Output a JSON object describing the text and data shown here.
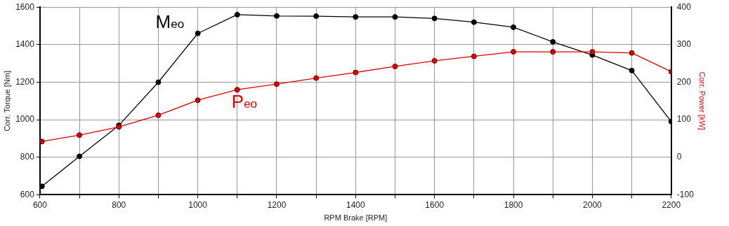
{
  "chart_data": {
    "type": "line",
    "xlabel": "RPM Brake [RPM]",
    "ylabel": "Corr. Torque [Nm]",
    "y2label": "Corr. Power [kW]",
    "x": [
      605,
      700,
      800,
      900,
      1000,
      1100,
      1200,
      1300,
      1400,
      1500,
      1600,
      1700,
      1800,
      1900,
      2000,
      2100,
      2200
    ],
    "series": [
      {
        "name": "M$_{eo}$",
        "color": "#000000",
        "values": [
          645,
          805,
          970,
          1200,
          1460,
          1560,
          1553,
          1552,
          1548,
          1548,
          1540,
          1520,
          1493,
          1415,
          1345,
          1262,
          990
        ]
      },
      {
        "name": "P$_{eo}$",
        "color": "#e00000",
        "axis": "y2",
        "values": [
          42,
          59,
          81,
          112,
          152,
          180,
          195,
          211,
          226,
          242,
          257,
          269,
          281,
          281,
          281,
          278,
          228
        ]
      }
    ],
    "xlim": [
      600,
      2200
    ],
    "xticks": [
      600,
      {
        "value": 700,
        "label": null
      },
      800,
      {
        "value": 900,
        "label": null
      },
      1000,
      {
        "value": 1100,
        "label": null
      },
      1200,
      {
        "value": 1300,
        "label": null
      },
      1400,
      {
        "value": 1500,
        "label": null
      },
      1600,
      {
        "value": 1700,
        "label": null
      },
      1800,
      {
        "value": 1900,
        "label": null
      },
      2000,
      {
        "value": 2100,
        "label": null
      },
      2200
    ],
    "ylim": [
      600,
      1600
    ],
    "yticks": [
      600,
      800,
      1000,
      1200,
      1400,
      1600
    ],
    "y2lim": [
      -100,
      400
    ],
    "y2ticks": [
      -100,
      0,
      100,
      200,
      300,
      400
    ],
    "grid": true,
    "legend": false,
    "marker": "circle",
    "line_style": "solid"
  }
}
